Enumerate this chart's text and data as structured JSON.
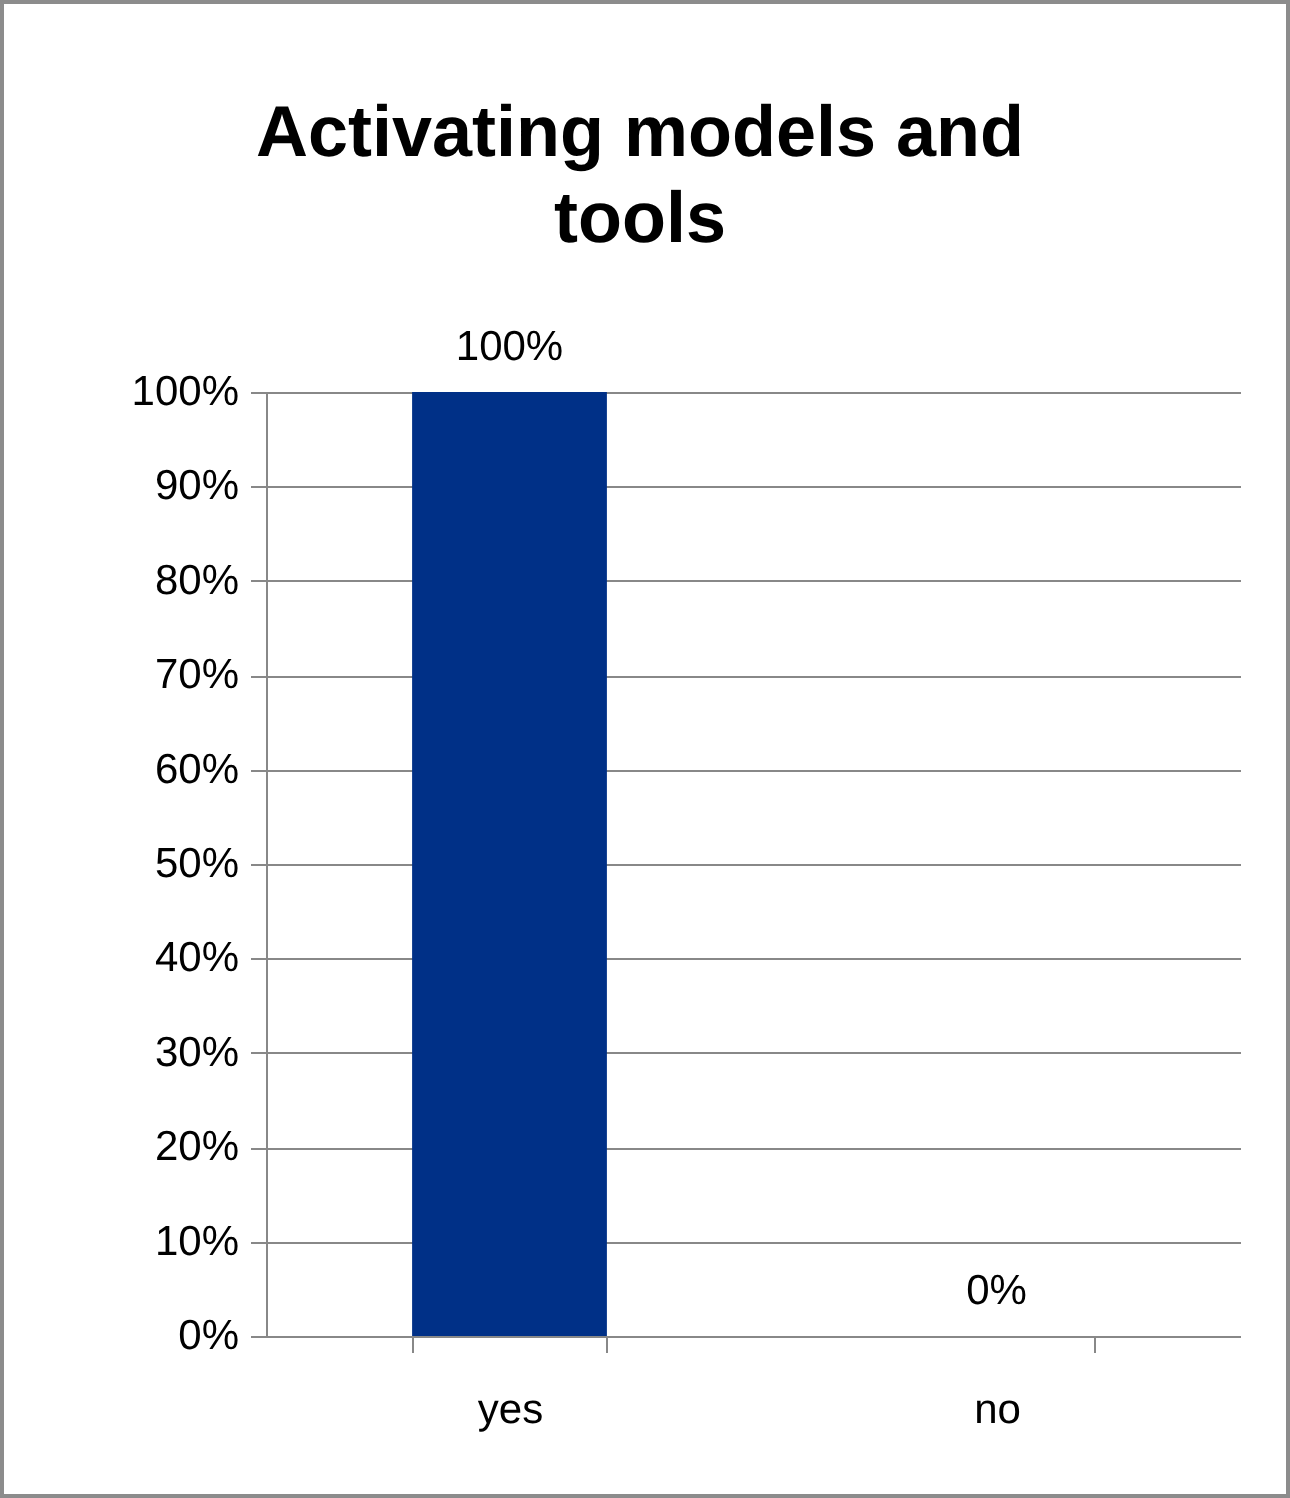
{
  "chart_data": {
    "type": "bar",
    "title": "Activating models and tools",
    "categories": [
      "yes",
      "no"
    ],
    "values": [
      100,
      0
    ],
    "color": "#003087",
    "value_labels": [
      "100%",
      "0%"
    ],
    "ylim": [
      0,
      100
    ],
    "yticks": [
      {
        "value": 0,
        "label": "0%"
      },
      {
        "value": 10,
        "label": "10%"
      },
      {
        "value": 20,
        "label": "20%"
      },
      {
        "value": 30,
        "label": "30%"
      },
      {
        "value": 40,
        "label": "40%"
      },
      {
        "value": 50,
        "label": "50%"
      },
      {
        "value": 60,
        "label": "60%"
      },
      {
        "value": 70,
        "label": "70%"
      },
      {
        "value": 80,
        "label": "80%"
      },
      {
        "value": 90,
        "label": "90%"
      },
      {
        "value": 100,
        "label": "100%"
      }
    ],
    "grid": "y"
  }
}
